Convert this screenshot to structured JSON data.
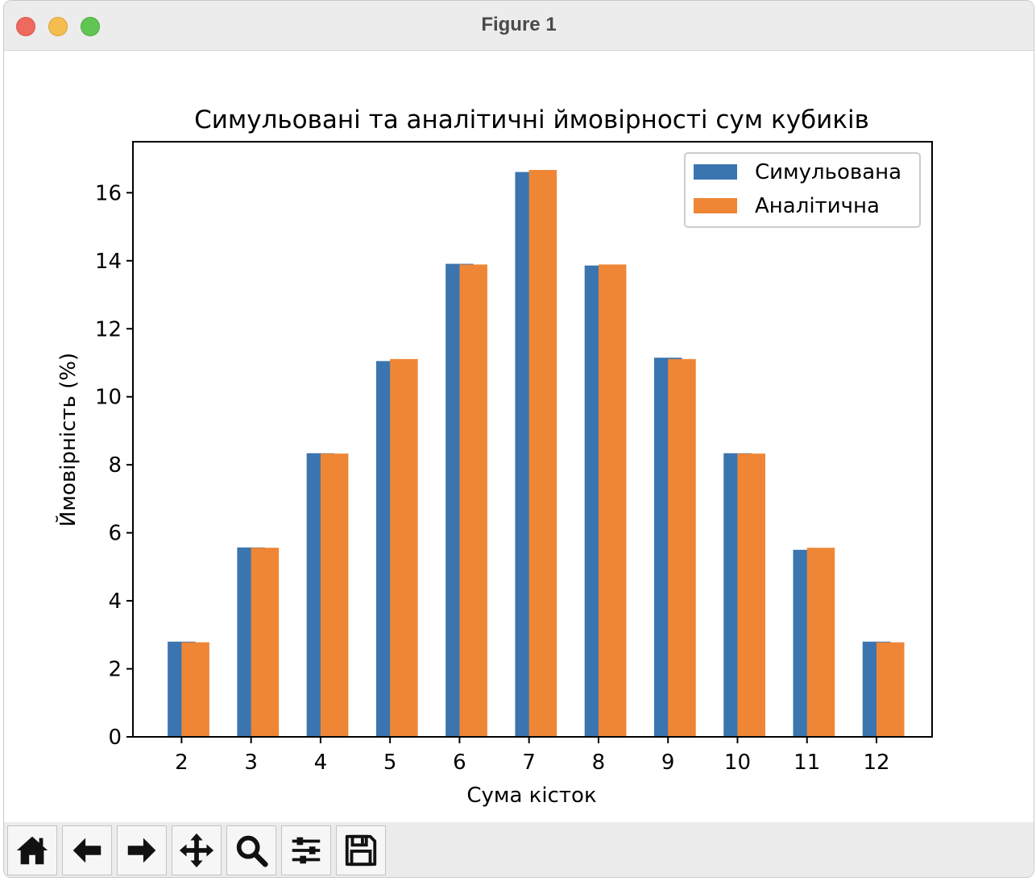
{
  "window": {
    "title": "Figure 1"
  },
  "toolbar": {
    "buttons": [
      {
        "name": "home-button",
        "icon": "home-icon"
      },
      {
        "name": "back-button",
        "icon": "arrow-left-icon"
      },
      {
        "name": "forward-button",
        "icon": "arrow-right-icon"
      },
      {
        "name": "pan-button",
        "icon": "move-icon"
      },
      {
        "name": "zoom-button",
        "icon": "magnifier-icon"
      },
      {
        "name": "configure-subplots-button",
        "icon": "sliders-icon"
      },
      {
        "name": "save-button",
        "icon": "floppy-disk-icon"
      }
    ]
  },
  "chart_data": {
    "type": "bar",
    "title": "Симульовані та аналітичні ймовірності сум кубиків",
    "xlabel": "Сума кісток",
    "ylabel": "Ймовірність (%)",
    "categories": [
      "2",
      "3",
      "4",
      "5",
      "6",
      "7",
      "8",
      "9",
      "10",
      "11",
      "12"
    ],
    "series": [
      {
        "name": "Симульована",
        "color": "#3b75af",
        "values": [
          2.8,
          5.57,
          8.34,
          11.05,
          13.91,
          16.61,
          13.86,
          11.15,
          8.34,
          5.5,
          2.8
        ]
      },
      {
        "name": "Аналітична",
        "color": "#ef8636",
        "values": [
          2.78,
          5.56,
          8.33,
          11.11,
          13.89,
          16.67,
          13.89,
          11.11,
          8.33,
          5.56,
          2.78
        ]
      }
    ],
    "ylim": [
      0,
      17.5
    ],
    "yticks": [
      0,
      2,
      4,
      6,
      8,
      10,
      12,
      14,
      16
    ],
    "legend_position": "top-right",
    "grid": false
  }
}
